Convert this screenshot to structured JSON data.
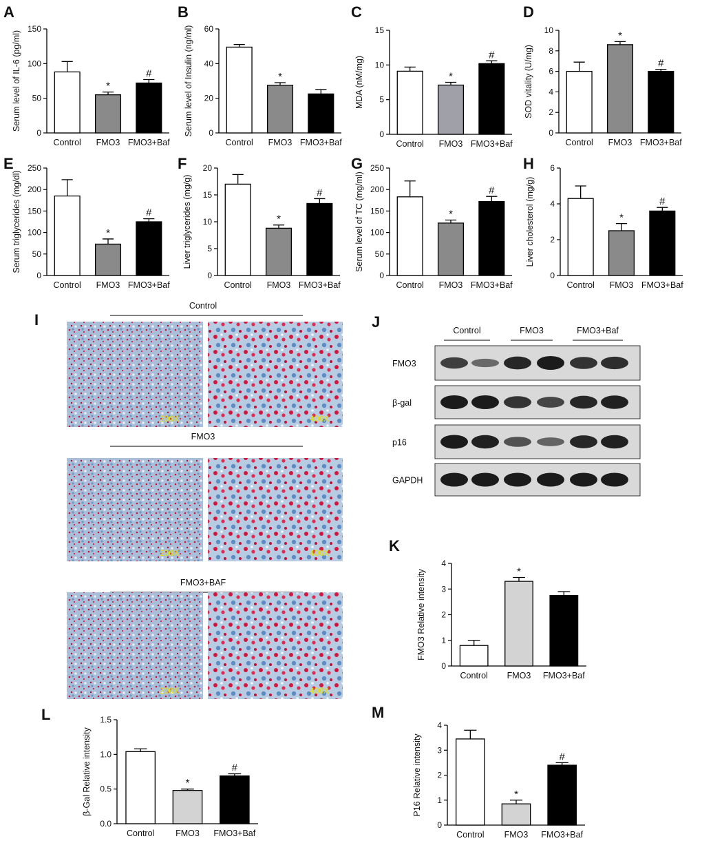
{
  "chart_data": [
    {
      "type": "bar",
      "panel": "A",
      "ylabel": "Serum level of IL-6 (pg/ml)",
      "categories": [
        "Control",
        "FMO3",
        "FMO3+Baf"
      ],
      "values": [
        88,
        55,
        72
      ],
      "errors": [
        15,
        4,
        5
      ],
      "annotations": [
        null,
        "*",
        "#"
      ],
      "colors": [
        "#ffffff",
        "#8a8a8a",
        "#000000"
      ],
      "ylim": [
        0,
        150
      ],
      "yticks": [
        0,
        50,
        100,
        150
      ]
    },
    {
      "type": "bar",
      "panel": "B",
      "ylabel": "Serum level of Insulin (ng/ml)",
      "categories": [
        "Control",
        "FMO3",
        "FMO3+Baf"
      ],
      "values": [
        49.5,
        27.5,
        22.5
      ],
      "errors": [
        1.5,
        1.5,
        2.5
      ],
      "annotations": [
        null,
        "*",
        null
      ],
      "colors": [
        "#ffffff",
        "#8a8a8a",
        "#000000"
      ],
      "ylim": [
        0,
        60
      ],
      "yticks": [
        0,
        20,
        40,
        60
      ]
    },
    {
      "type": "bar",
      "panel": "C",
      "ylabel": "MDA (nM/mg)",
      "categories": [
        "Control",
        "FMO3",
        "FMO3+Baf"
      ],
      "values": [
        9.1,
        7.1,
        10.2
      ],
      "errors": [
        0.6,
        0.4,
        0.4
      ],
      "annotations": [
        null,
        "*",
        "#"
      ],
      "colors": [
        "#ffffff",
        "#a0a0a8",
        "#000000"
      ],
      "ylim": [
        0,
        15
      ],
      "yticks": [
        0,
        5,
        10,
        15
      ]
    },
    {
      "type": "bar",
      "panel": "D",
      "ylabel": "SOD vitality (U/mg)",
      "categories": [
        "Control",
        "FMO3",
        "FMO3+Baf"
      ],
      "values": [
        6.0,
        8.6,
        6.0
      ],
      "errors": [
        0.9,
        0.3,
        0.2
      ],
      "annotations": [
        null,
        "*",
        "#"
      ],
      "colors": [
        "#ffffff",
        "#8a8a8a",
        "#000000"
      ],
      "ylim": [
        0,
        10
      ],
      "yticks": [
        0,
        2,
        4,
        6,
        8,
        10
      ]
    },
    {
      "type": "bar",
      "panel": "E",
      "ylabel": "Serum triglycerides (mg/dl)",
      "categories": [
        "Control",
        "FMO3",
        "FMO3+Baf"
      ],
      "values": [
        185,
        73,
        125
      ],
      "errors": [
        38,
        12,
        7
      ],
      "annotations": [
        null,
        "*",
        "#"
      ],
      "colors": [
        "#ffffff",
        "#8a8a8a",
        "#000000"
      ],
      "ylim": [
        0,
        250
      ],
      "yticks": [
        0,
        50,
        100,
        150,
        200,
        250
      ]
    },
    {
      "type": "bar",
      "panel": "F",
      "ylabel": "Liver triglycerides (mg/g)",
      "categories": [
        "Control",
        "FMO3",
        "FMO3+Baf"
      ],
      "values": [
        17,
        8.8,
        13.4
      ],
      "errors": [
        1.8,
        0.6,
        0.9
      ],
      "annotations": [
        null,
        "*",
        "#"
      ],
      "colors": [
        "#ffffff",
        "#8a8a8a",
        "#000000"
      ],
      "ylim": [
        0,
        20
      ],
      "yticks": [
        0,
        5,
        10,
        15,
        20
      ]
    },
    {
      "type": "bar",
      "panel": "G",
      "ylabel": "Serum level of TC (mg/ml)",
      "categories": [
        "Control",
        "FMO3",
        "FMO3+Baf"
      ],
      "values": [
        183,
        122,
        172
      ],
      "errors": [
        37,
        7,
        12
      ],
      "annotations": [
        null,
        "*",
        "#"
      ],
      "colors": [
        "#ffffff",
        "#8a8a8a",
        "#000000"
      ],
      "ylim": [
        0,
        250
      ],
      "yticks": [
        0,
        50,
        100,
        150,
        200,
        250
      ]
    },
    {
      "type": "bar",
      "panel": "H",
      "ylabel": "Liver cholesterol (mg/g)",
      "categories": [
        "Control",
        "FMO3",
        "FMO3+Baf"
      ],
      "values": [
        4.3,
        2.5,
        3.6
      ],
      "errors": [
        0.7,
        0.4,
        0.2
      ],
      "annotations": [
        null,
        "*",
        "#"
      ],
      "colors": [
        "#ffffff",
        "#8a8a8a",
        "#000000"
      ],
      "ylim": [
        0,
        6
      ],
      "yticks": [
        0,
        2,
        4,
        6
      ]
    },
    {
      "type": "bar",
      "panel": "K",
      "ylabel": "FMO3 Relative intensity",
      "categories": [
        "Control",
        "FMO3",
        "FMO3+Baf"
      ],
      "values": [
        0.8,
        3.3,
        2.75
      ],
      "errors": [
        0.2,
        0.15,
        0.15
      ],
      "annotations": [
        null,
        "*",
        null
      ],
      "colors": [
        "#ffffff",
        "#d3d3d3",
        "#000000"
      ],
      "ylim": [
        0,
        4
      ],
      "yticks": [
        0,
        1,
        2,
        3,
        4
      ]
    },
    {
      "type": "bar",
      "panel": "L",
      "ylabel": "β-Gal Relative intensity",
      "categories": [
        "Control",
        "FMO3",
        "FMO3+Baf"
      ],
      "values": [
        1.04,
        0.48,
        0.69
      ],
      "errors": [
        0.04,
        0.02,
        0.03
      ],
      "annotations": [
        null,
        "*",
        "#"
      ],
      "colors": [
        "#ffffff",
        "#d3d3d3",
        "#000000"
      ],
      "ylim": [
        0,
        1.5
      ],
      "yticks": [
        {
          "value": 0,
          "label": "0.0"
        },
        0.5,
        {
          "value": 1,
          "label": "1.0"
        },
        1.5
      ]
    },
    {
      "type": "bar",
      "panel": "M",
      "ylabel": "P16 Relative intensity",
      "categories": [
        "Control",
        "FMO3",
        "FMO3+Baf"
      ],
      "values": [
        3.45,
        0.85,
        2.4
      ],
      "errors": [
        0.35,
        0.15,
        0.1
      ],
      "annotations": [
        null,
        "*",
        "#"
      ],
      "colors": [
        "#ffffff",
        "#d3d3d3",
        "#000000"
      ],
      "ylim": [
        0,
        4
      ],
      "yticks": [
        0,
        1,
        2,
        3,
        4
      ]
    }
  ],
  "histology": {
    "panel": "I",
    "groups": [
      {
        "title": "Control",
        "labels": [
          "200X",
          "400X"
        ]
      },
      {
        "title": "FMO3",
        "labels": [
          "200X",
          "400X"
        ]
      },
      {
        "title": "FMO3+BAF",
        "labels": [
          "200X",
          "400X"
        ]
      }
    ]
  },
  "blot": {
    "panel": "J",
    "groups": [
      "Control",
      "FMO3",
      "FMO3+Baf"
    ],
    "rows": [
      "FMO3",
      "β-gal",
      "p16",
      "GAPDH"
    ]
  }
}
